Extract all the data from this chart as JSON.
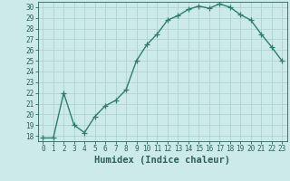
{
  "x": [
    0,
    1,
    2,
    3,
    4,
    5,
    6,
    7,
    8,
    9,
    10,
    11,
    12,
    13,
    14,
    15,
    16,
    17,
    18,
    19,
    20,
    21,
    22,
    23
  ],
  "y": [
    17.8,
    17.8,
    22.0,
    19.0,
    18.3,
    19.8,
    20.8,
    21.3,
    22.3,
    25.0,
    26.5,
    27.5,
    28.8,
    29.2,
    29.8,
    30.1,
    29.9,
    30.3,
    30.0,
    29.3,
    28.8,
    27.5,
    26.3,
    25.0
  ],
  "line_color": "#2e7d6e",
  "marker": "+",
  "marker_size": 4,
  "bg_color": "#cceaea",
  "grid_color": "#aacece",
  "xlabel": "Humidex (Indice chaleur)",
  "xlim": [
    -0.5,
    23.5
  ],
  "ylim": [
    17.5,
    30.5
  ],
  "yticks": [
    18,
    19,
    20,
    21,
    22,
    23,
    24,
    25,
    26,
    27,
    28,
    29,
    30
  ],
  "xticks": [
    0,
    1,
    2,
    3,
    4,
    5,
    6,
    7,
    8,
    9,
    10,
    11,
    12,
    13,
    14,
    15,
    16,
    17,
    18,
    19,
    20,
    21,
    22,
    23
  ],
  "font_color": "#2e5f5a",
  "tick_fontsize": 5.5,
  "xlabel_fontsize": 7.5
}
